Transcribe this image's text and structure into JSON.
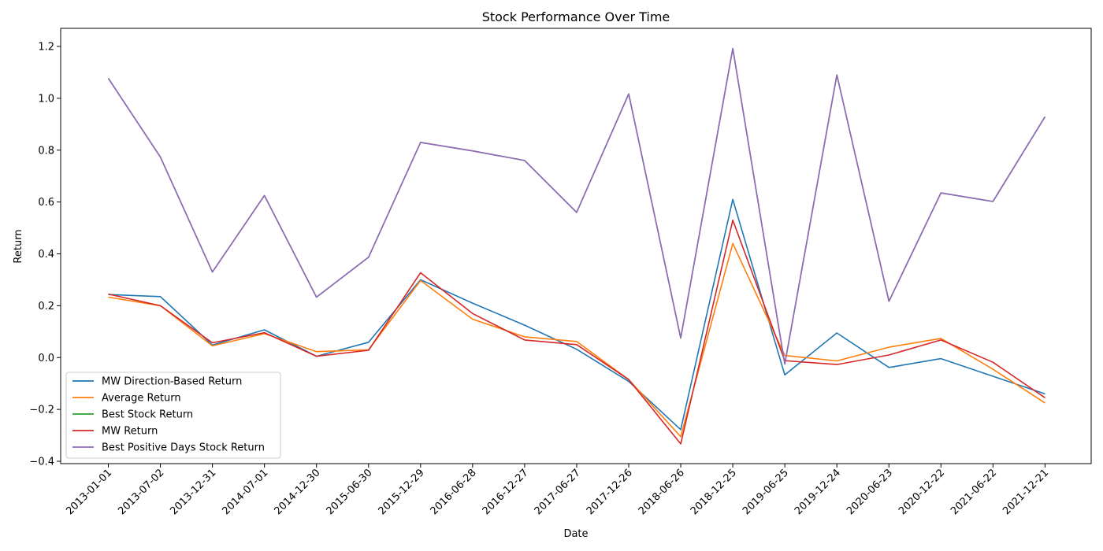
{
  "chart_data": {
    "type": "line",
    "title": "Stock Performance Over Time",
    "xlabel": "Date",
    "ylabel": "Return",
    "categories": [
      "2013-01-01",
      "2013-07-02",
      "2013-12-31",
      "2014-07-01",
      "2014-12-30",
      "2015-06-30",
      "2015-12-29",
      "2016-06-28",
      "2016-12-27",
      "2017-06-27",
      "2017-12-26",
      "2018-06-26",
      "2018-12-25",
      "2019-06-25",
      "2019-12-24",
      "2020-06-23",
      "2020-12-22",
      "2021-06-22",
      "2021-12-21"
    ],
    "ylim": [
      -0.4,
      1.2
    ],
    "yticks": [
      -0.4,
      -0.2,
      0.0,
      0.2,
      0.4,
      0.6,
      0.8,
      1.0,
      1.2
    ],
    "ytick_labels": [
      "−0.4",
      "−0.2",
      "0.0",
      "0.2",
      "0.4",
      "0.6",
      "0.8",
      "1.0",
      "1.2"
    ],
    "grid": false,
    "legend_position": "lower-left",
    "series": [
      {
        "name": "MW Direction-Based Return",
        "color": "#1f77b4",
        "values": [
          0.243,
          0.235,
          0.048,
          0.107,
          0.005,
          0.059,
          0.3,
          0.21,
          0.125,
          0.032,
          -0.092,
          -0.278,
          0.61,
          -0.067,
          0.095,
          -0.038,
          -0.004,
          -0.072,
          -0.14
        ]
      },
      {
        "name": "Average Return",
        "color": "#ff7f0e",
        "values": [
          0.233,
          0.2,
          0.045,
          0.092,
          0.023,
          0.03,
          0.297,
          0.148,
          0.08,
          0.062,
          -0.085,
          -0.305,
          0.44,
          0.008,
          -0.013,
          0.04,
          0.074,
          -0.045,
          -0.175
        ]
      },
      {
        "name": "Best Stock Return",
        "color": "#2ca02c",
        "values": [
          1.077,
          0.773,
          0.33,
          0.625,
          0.233,
          0.387,
          0.83,
          0.797,
          0.76,
          0.56,
          1.017,
          0.075,
          1.192,
          -0.025,
          1.09,
          0.217,
          0.635,
          0.602,
          0.929
        ]
      },
      {
        "name": "MW Return",
        "color": "#d62728",
        "values": [
          0.245,
          0.2,
          0.057,
          0.096,
          0.005,
          0.028,
          0.327,
          0.17,
          0.068,
          0.05,
          -0.085,
          -0.333,
          0.53,
          -0.012,
          -0.027,
          0.01,
          0.068,
          -0.018,
          -0.155
        ]
      },
      {
        "name": "Best Positive Days Stock Return",
        "color": "#9467bd",
        "values": [
          1.077,
          0.773,
          0.33,
          0.625,
          0.233,
          0.387,
          0.83,
          0.797,
          0.76,
          0.56,
          1.017,
          0.075,
          1.192,
          -0.025,
          1.09,
          0.217,
          0.635,
          0.602,
          0.929
        ]
      }
    ]
  }
}
